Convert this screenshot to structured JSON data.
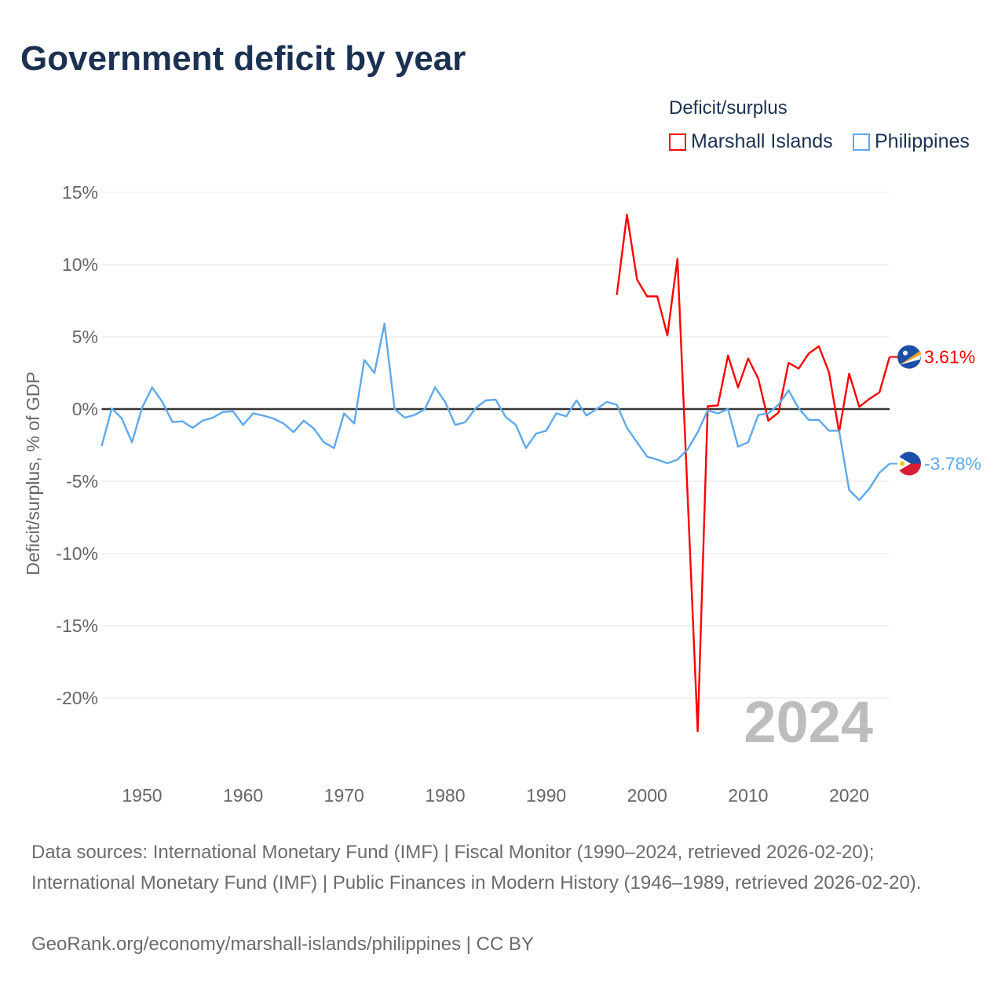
{
  "title": "Government deficit by year",
  "legend": {
    "title": "Deficit/surplus",
    "items": [
      {
        "label": "Marshall Islands",
        "color": "#ff0000"
      },
      {
        "label": "Philippines",
        "color": "#5ea8ec"
      }
    ]
  },
  "footer": {
    "sources": "Data sources: International Monetary Fund (IMF) | Fiscal Monitor (1990–2024, retrieved 2026-02-20); International Monetary Fund (IMF) | Public Finances in Modern History (1946–1989, retrieved 2026-02-20).",
    "attribution": "GeoRank.org/economy/marshall-islands/philippines | CC BY"
  },
  "chart_data": {
    "type": "line",
    "title": "Government deficit by year",
    "ylabel": "Deficit/surplus, % of GDP",
    "xlabel": "",
    "year_watermark": "2024",
    "xlim": [
      1946,
      2024
    ],
    "ylim": [
      -20,
      15
    ],
    "yticks": [
      15,
      10,
      5,
      0,
      -5,
      -10,
      -15,
      -20
    ],
    "ytick_labels": [
      "15%",
      "10%",
      "5%",
      "0%",
      "-5%",
      "-10%",
      "-15%",
      "-20%"
    ],
    "xticks": [
      1950,
      1960,
      1970,
      1980,
      1990,
      2000,
      2010,
      2020
    ],
    "xtick_labels": [
      "1950",
      "1960",
      "1970",
      "1980",
      "1990",
      "2000",
      "2010",
      "2020"
    ],
    "grid": true,
    "legend_position": "top-right",
    "series": [
      {
        "name": "Marshall Islands",
        "color": "#ff0000",
        "end_label": "3.61%",
        "x": [
          1997,
          1998,
          1999,
          2000,
          2001,
          2002,
          2003,
          2004,
          2005,
          2006,
          2007,
          2008,
          2009,
          2010,
          2011,
          2012,
          2013,
          2014,
          2015,
          2016,
          2017,
          2018,
          2019,
          2020,
          2021,
          2022,
          2023,
          2024
        ],
        "values": [
          7.9,
          13.45,
          8.95,
          7.8,
          7.8,
          5.1,
          10.4,
          -5.9,
          -22.3,
          0.2,
          0.25,
          3.7,
          1.5,
          3.5,
          2.1,
          -0.8,
          -0.25,
          3.2,
          2.8,
          3.85,
          4.35,
          2.55,
          -1.6,
          2.45,
          0.15,
          0.7,
          1.15,
          3.61
        ]
      },
      {
        "name": "Philippines",
        "color": "#5ea8ec",
        "end_label": "-3.78%",
        "x": [
          1946,
          1947,
          1948,
          1949,
          1950,
          1951,
          1952,
          1953,
          1954,
          1955,
          1956,
          1957,
          1958,
          1959,
          1960,
          1961,
          1962,
          1963,
          1964,
          1965,
          1966,
          1967,
          1968,
          1969,
          1970,
          1971,
          1972,
          1973,
          1974,
          1975,
          1976,
          1977,
          1978,
          1979,
          1980,
          1981,
          1982,
          1983,
          1984,
          1985,
          1986,
          1987,
          1988,
          1989,
          1990,
          1991,
          1992,
          1993,
          1994,
          1995,
          1996,
          1997,
          1998,
          1999,
          2000,
          2001,
          2002,
          2003,
          2004,
          2005,
          2006,
          2007,
          2008,
          2009,
          2010,
          2011,
          2012,
          2013,
          2014,
          2015,
          2016,
          2017,
          2018,
          2019,
          2020,
          2021,
          2022,
          2023,
          2024
        ],
        "values": [
          -2.55,
          0.05,
          -0.65,
          -2.3,
          0.1,
          1.5,
          0.5,
          -0.9,
          -0.85,
          -1.3,
          -0.8,
          -0.6,
          -0.2,
          -0.15,
          -1.1,
          -0.3,
          -0.45,
          -0.65,
          -1.0,
          -1.6,
          -0.8,
          -1.35,
          -2.3,
          -2.7,
          -0.3,
          -1.0,
          3.4,
          2.5,
          5.9,
          0,
          -0.6,
          -0.4,
          0,
          1.5,
          0.5,
          -1.1,
          -0.9,
          0.05,
          0.6,
          0.65,
          -0.55,
          -1.1,
          -2.7,
          -1.7,
          -1.5,
          -0.3,
          -0.5,
          0.6,
          -0.45,
          0,
          0.5,
          0.3,
          -1.3,
          -2.3,
          -3.3,
          -3.5,
          -3.75,
          -3.5,
          -2.8,
          -1.6,
          -0.1,
          -0.3,
          0,
          -2.6,
          -2.3,
          -0.4,
          -0.3,
          0.3,
          1.3,
          0.05,
          -0.75,
          -0.75,
          -1.5,
          -1.5,
          -5.6,
          -6.3,
          -5.5,
          -4.4,
          -3.78
        ]
      }
    ]
  }
}
